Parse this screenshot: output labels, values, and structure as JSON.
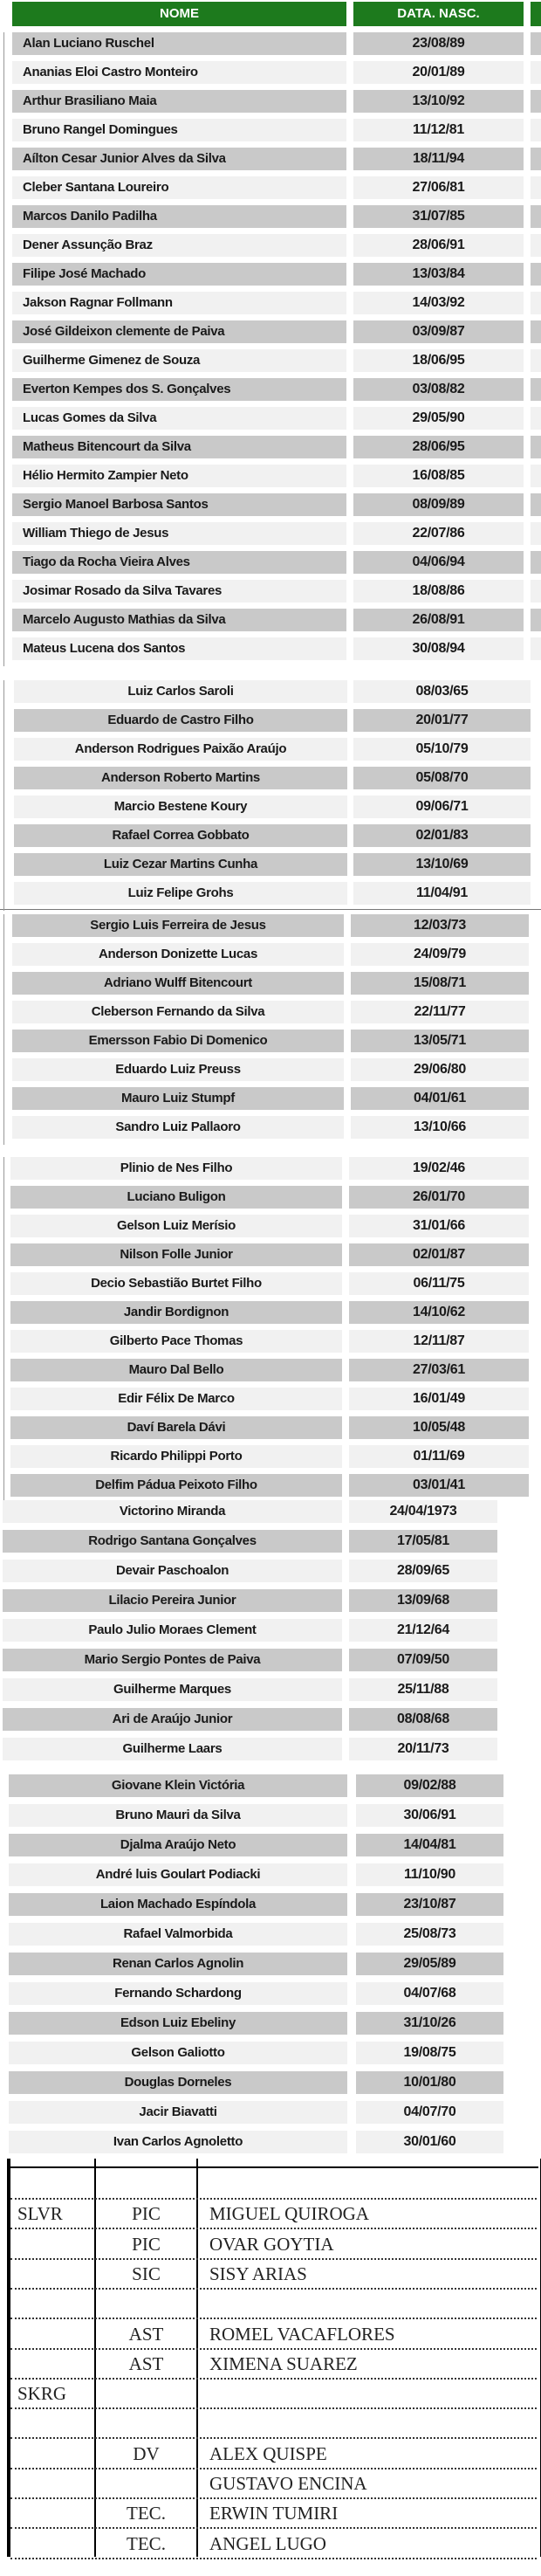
{
  "header": {
    "name": "NOME",
    "date": "DATA. NASC.",
    "color": "#1d7a1d"
  },
  "sections": [
    {
      "align": "left",
      "rows": [
        {
          "name": "Alan Luciano Ruschel",
          "date": "23/08/89",
          "shade": "dark"
        },
        {
          "name": "Ananias Eloi Castro Monteiro",
          "date": "20/01/89",
          "shade": "light"
        },
        {
          "name": "Arthur Brasiliano Maia",
          "date": "13/10/92",
          "shade": "dark"
        },
        {
          "name": "Bruno Rangel Domingues",
          "date": "11/12/81",
          "shade": "light"
        },
        {
          "name": "Aílton Cesar Junior Alves da Silva",
          "date": "18/11/94",
          "shade": "dark"
        },
        {
          "name": "Cleber Santana Loureiro",
          "date": "27/06/81",
          "shade": "light"
        },
        {
          "name": "Marcos Danilo Padilha",
          "date": "31/07/85",
          "shade": "dark"
        },
        {
          "name": "Dener Assunção Braz",
          "date": "28/06/91",
          "shade": "light"
        },
        {
          "name": "Filipe José Machado",
          "date": "13/03/84",
          "shade": "dark"
        },
        {
          "name": "Jakson Ragnar Follmann",
          "date": "14/03/92",
          "shade": "light"
        },
        {
          "name": "José Gildeixon clemente de Paiva",
          "date": "03/09/87",
          "shade": "dark"
        },
        {
          "name": "Guilherme Gimenez de Souza",
          "date": "18/06/95",
          "shade": "light"
        },
        {
          "name": "Everton Kempes dos S. Gonçalves",
          "date": "03/08/82",
          "shade": "dark"
        },
        {
          "name": "Lucas Gomes da Silva",
          "date": "29/05/90",
          "shade": "light"
        },
        {
          "name": "Matheus Bitencourt da Silva",
          "date": "28/06/95",
          "shade": "dark"
        },
        {
          "name": "Hélio Hermito Zampier Neto",
          "date": "16/08/85",
          "shade": "light"
        },
        {
          "name": "Sergio Manoel Barbosa Santos",
          "date": "08/09/89",
          "shade": "dark"
        },
        {
          "name": "William Thiego de Jesus",
          "date": "22/07/86",
          "shade": "light"
        },
        {
          "name": "Tiago da Rocha Vieira Alves",
          "date": "04/06/94",
          "shade": "dark"
        },
        {
          "name": "Josimar Rosado da Silva Tavares",
          "date": "18/08/86",
          "shade": "light"
        },
        {
          "name": "Marcelo Augusto Mathias da Silva",
          "date": "26/08/91",
          "shade": "dark"
        },
        {
          "name": "Mateus Lucena dos Santos",
          "date": "30/08/94",
          "shade": "light"
        }
      ]
    },
    {
      "align": "center",
      "rows": [
        {
          "name": "Luiz Carlos Saroli",
          "date": "08/03/65",
          "shade": "light"
        },
        {
          "name": "Eduardo de Castro Filho",
          "date": "20/01/77",
          "shade": "dark"
        },
        {
          "name": "Anderson Rodrigues Paixão Araújo",
          "date": "05/10/79",
          "shade": "light"
        },
        {
          "name": "Anderson Roberto Martins",
          "date": "05/08/70",
          "shade": "dark"
        },
        {
          "name": "Marcio Bestene Koury",
          "date": "09/06/71",
          "shade": "light"
        },
        {
          "name": "Rafael Correa Gobbato",
          "date": "02/01/83",
          "shade": "dark"
        },
        {
          "name": "Luiz Cezar Martins Cunha",
          "date": "13/10/69",
          "shade": "dark"
        },
        {
          "name": "Luiz Felipe Grohs",
          "date": "11/04/91",
          "shade": "light"
        }
      ]
    },
    {
      "align": "center",
      "rows": [
        {
          "name": "Sergio Luis Ferreira de Jesus",
          "date": "12/03/73",
          "shade": "dark"
        },
        {
          "name": "Anderson Donizette Lucas",
          "date": "24/09/79",
          "shade": "light"
        },
        {
          "name": "Adriano Wulff Bitencourt",
          "date": "15/08/71",
          "shade": "dark"
        },
        {
          "name": "Cleberson Fernando da Silva",
          "date": "22/11/77",
          "shade": "light"
        },
        {
          "name": "Emersson Fabio Di Domenico",
          "date": "13/05/71",
          "shade": "dark"
        },
        {
          "name": "Eduardo Luiz Preuss",
          "date": "29/06/80",
          "shade": "light"
        },
        {
          "name": "Mauro Luiz Stumpf",
          "date": "04/01/61",
          "shade": "dark"
        },
        {
          "name": "Sandro Luiz Pallaoro",
          "date": "13/10/66",
          "shade": "light"
        }
      ]
    },
    {
      "align": "center",
      "rows": [
        {
          "name": "Plinio de Nes Filho",
          "date": "19/02/46",
          "shade": "light"
        },
        {
          "name": "Luciano Buligon",
          "date": "26/01/70",
          "shade": "dark"
        },
        {
          "name": "Gelson Luiz Merísio",
          "date": "31/01/66",
          "shade": "light"
        },
        {
          "name": "Nilson Folle Junior",
          "date": "02/01/87",
          "shade": "dark"
        },
        {
          "name": "Decio Sebastião Burtet Filho",
          "date": "06/11/75",
          "shade": "light"
        },
        {
          "name": "Jandir Bordignon",
          "date": "14/10/62",
          "shade": "dark"
        },
        {
          "name": "Gilberto Pace Thomas",
          "date": "12/11/87",
          "shade": "light"
        },
        {
          "name": "Mauro Dal Bello",
          "date": "27/03/61",
          "shade": "dark"
        },
        {
          "name": "Edir Félix De Marco",
          "date": "16/01/49",
          "shade": "light"
        },
        {
          "name": "Daví Barela Dávi",
          "date": "10/05/48",
          "shade": "dark"
        },
        {
          "name": "Ricardo Philippi Porto",
          "date": "01/11/69",
          "shade": "light"
        },
        {
          "name": "Delfim Pádua Peixoto Filho",
          "date": "03/01/41",
          "shade": "dark"
        }
      ]
    },
    {
      "align": "center",
      "rows": [
        {
          "name": "Victorino Miranda",
          "date": "24/04/1973",
          "shade": "light"
        },
        {
          "name": "Rodrigo Santana Gonçalves",
          "date": "17/05/81",
          "shade": "dark"
        },
        {
          "name": "Devair Paschoalon",
          "date": "28/09/65",
          "shade": "light"
        },
        {
          "name": "Lilacio Pereira Junior",
          "date": "13/09/68",
          "shade": "dark"
        },
        {
          "name": "Paulo Julio Moraes Clement",
          "date": "21/12/64",
          "shade": "light"
        },
        {
          "name": "Mario Sergio Pontes de Paiva",
          "date": "07/09/50",
          "shade": "dark"
        },
        {
          "name": "Guilherme Marques",
          "date": "25/11/88",
          "shade": "light"
        },
        {
          "name": "Ari de Araújo Junior",
          "date": "08/08/68",
          "shade": "dark"
        },
        {
          "name": "Guilherme Laars",
          "date": "20/11/73",
          "shade": "light"
        }
      ]
    },
    {
      "align": "center",
      "rows": [
        {
          "name": "Giovane Klein Victória",
          "date": "09/02/88",
          "shade": "dark"
        },
        {
          "name": "Bruno Mauri da Silva",
          "date": "30/06/91",
          "shade": "light"
        },
        {
          "name": "Djalma Araújo Neto",
          "date": "14/04/81",
          "shade": "dark"
        },
        {
          "name": "André luis Goulart Podiacki",
          "date": "11/10/90",
          "shade": "light"
        },
        {
          "name": "Laion Machado Espíndola",
          "date": "23/10/87",
          "shade": "dark"
        },
        {
          "name": "Rafael Valmorbida",
          "date": "25/08/73",
          "shade": "light"
        },
        {
          "name": "Renan Carlos Agnolin",
          "date": "29/05/89",
          "shade": "dark"
        },
        {
          "name": "Fernando Schardong",
          "date": "04/07/68",
          "shade": "light"
        },
        {
          "name": "Edson Luiz Ebeliny",
          "date": "31/10/26",
          "shade": "dark"
        },
        {
          "name": "Gelson Galiotto",
          "date": "19/08/75",
          "shade": "light"
        },
        {
          "name": "Douglas Dorneles",
          "date": "10/01/80",
          "shade": "dark"
        },
        {
          "name": "Jacir Biavatti",
          "date": "04/07/70",
          "shade": "light"
        },
        {
          "name": "Ivan Carlos Agnoletto",
          "date": "30/01/60",
          "shade": "light"
        }
      ]
    }
  ],
  "crew": [
    {
      "group": "",
      "role": "",
      "name": ""
    },
    {
      "group": "SLVR",
      "role": "PIC",
      "name": "MIGUEL QUIROGA"
    },
    {
      "group": "",
      "role": "PIC",
      "name": "OVAR GOYTIA"
    },
    {
      "group": "",
      "role": "SIC",
      "name": "SISY ARIAS"
    },
    {
      "group": "",
      "role": "",
      "name": ""
    },
    {
      "group": "",
      "role": "AST",
      "name": "ROMEL VACAFLORES"
    },
    {
      "group": "",
      "role": "AST",
      "name": "XIMENA SUAREZ"
    },
    {
      "group": "SKRG",
      "role": "",
      "name": ""
    },
    {
      "group": "",
      "role": "",
      "name": ""
    },
    {
      "group": "",
      "role": "DV",
      "name": "ALEX QUISPE"
    },
    {
      "group": "",
      "role": "",
      "name": "GUSTAVO ENCINA"
    },
    {
      "group": "",
      "role": "TEC.",
      "name": "ERWIN TUMIRI"
    },
    {
      "group": "",
      "role": "TEC.",
      "name": "ANGEL LUGO"
    }
  ]
}
